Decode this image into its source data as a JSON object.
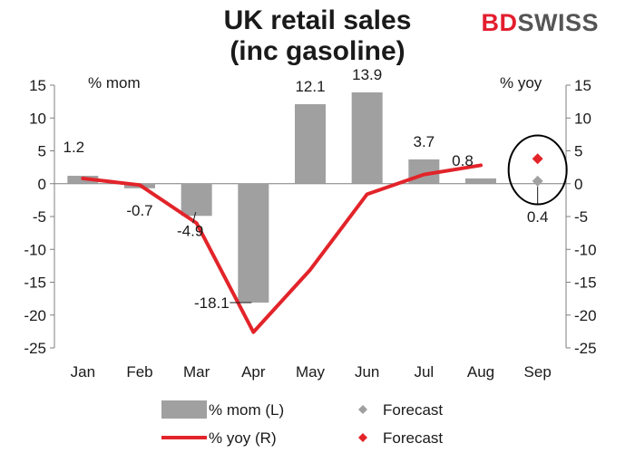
{
  "title_line1": "UK retail sales",
  "title_line2": "(inc gasoline)",
  "logo": {
    "part1": "BD",
    "part2": "SWISS"
  },
  "left_axis_unit": "% mom",
  "right_axis_unit": "% yoy",
  "colors": {
    "mom": "#a0a0a0",
    "yoy": "#e2242a",
    "forecast_mom": "#a0a0a0",
    "forecast_yoy": "#e2242a",
    "logo_red": "#e31e2d",
    "logo_gray": "#555555"
  },
  "chart_data": {
    "type": "bar",
    "categories": [
      "Jan",
      "Feb",
      "Mar",
      "Apr",
      "May",
      "Jun",
      "Jul",
      "Aug",
      "Sep"
    ],
    "series": [
      {
        "name": "% mom (L)",
        "type": "bar",
        "axis": "left",
        "values": [
          1.2,
          -0.7,
          -4.9,
          -18.1,
          12.1,
          13.9,
          3.7,
          0.8,
          null
        ],
        "labels": [
          "1.2",
          "-0.7",
          "-4.9",
          "-18.1",
          "12.1",
          "13.9",
          "3.7",
          "0.8",
          ""
        ]
      },
      {
        "name": "% yoy (R)",
        "type": "line",
        "axis": "right",
        "values": [
          0.8,
          -0.2,
          -6.0,
          -22.6,
          -13.1,
          -1.6,
          1.4,
          2.8,
          null
        ]
      },
      {
        "name": "Forecast",
        "type": "marker",
        "axis": "left",
        "values": [
          null,
          null,
          null,
          null,
          null,
          null,
          null,
          null,
          0.4
        ],
        "labels": [
          "",
          "",
          "",
          "",
          "",
          "",
          "",
          "",
          "0.4"
        ]
      },
      {
        "name": "Forecast",
        "type": "marker",
        "axis": "right",
        "values": [
          null,
          null,
          null,
          null,
          null,
          null,
          null,
          null,
          3.8
        ]
      }
    ],
    "ylim_left": [
      -25,
      15
    ],
    "ylim_right": [
      -25,
      15
    ],
    "yticks": [
      "15",
      "10",
      "5",
      "0",
      "-5",
      "-10",
      "-15",
      "-20",
      "-25"
    ],
    "legend": [
      {
        "label": "% mom (L)",
        "symbol": "bar"
      },
      {
        "label": "Forecast",
        "symbol": "diamond-gray"
      },
      {
        "label": "% yoy (R)",
        "symbol": "line"
      },
      {
        "label": "Forecast",
        "symbol": "diamond-red"
      }
    ],
    "legend_position": "bottom",
    "grid": false,
    "annotation": "circle around Sep forecast"
  }
}
